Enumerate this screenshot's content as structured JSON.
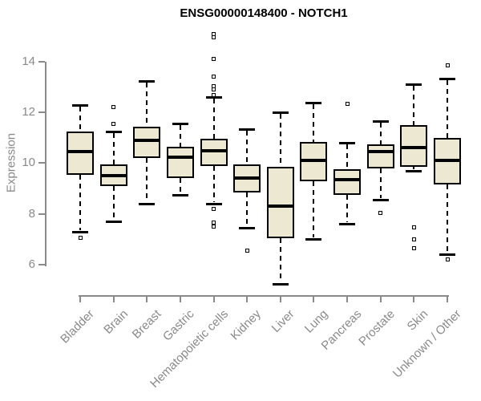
{
  "chart_data": {
    "type": "boxplot",
    "title": "ENSG00000148400 - NOTCH1",
    "ylabel": "Expression",
    "xlabel": "",
    "ylim": [
      6,
      14
    ],
    "yticks": [
      6,
      8,
      10,
      12,
      14
    ],
    "grid": false,
    "legend": "none",
    "categories": [
      "Bladder",
      "Brain",
      "Breast",
      "Gastric",
      "Hematopoietic cells",
      "Kidney",
      "Liver",
      "Lung",
      "Pancreas",
      "Prostate",
      "Skin",
      "Unknown / Other"
    ],
    "series": [
      {
        "name": "Bladder",
        "whisker_low": 7.3,
        "q1": 9.55,
        "median": 10.45,
        "q3": 11.25,
        "whisker_high": 12.3,
        "outliers": [
          7.05
        ]
      },
      {
        "name": "Brain",
        "whisker_low": 7.7,
        "q1": 9.1,
        "median": 9.5,
        "q3": 9.95,
        "whisker_high": 11.25,
        "outliers": [
          12.2,
          11.55
        ]
      },
      {
        "name": "Breast",
        "whisker_low": 8.4,
        "q1": 10.2,
        "median": 10.9,
        "q3": 11.45,
        "whisker_high": 13.25,
        "outliers": []
      },
      {
        "name": "Gastric",
        "whisker_low": 8.75,
        "q1": 9.4,
        "median": 10.25,
        "q3": 10.65,
        "whisker_high": 11.55,
        "outliers": []
      },
      {
        "name": "Hematopoietic cells",
        "whisker_low": 8.4,
        "q1": 9.9,
        "median": 10.5,
        "q3": 10.95,
        "whisker_high": 12.6,
        "outliers": [
          15.1,
          14.95,
          14.1,
          13.4,
          13.05,
          12.9,
          12.7,
          8.2,
          7.65,
          7.5
        ]
      },
      {
        "name": "Kidney",
        "whisker_low": 7.45,
        "q1": 8.85,
        "median": 9.4,
        "q3": 9.95,
        "whisker_high": 11.35,
        "outliers": [
          6.55
        ]
      },
      {
        "name": "Liver",
        "whisker_low": 5.25,
        "q1": 7.05,
        "median": 8.3,
        "q3": 9.85,
        "whisker_high": 12.0,
        "outliers": []
      },
      {
        "name": "Lung",
        "whisker_low": 7.0,
        "q1": 9.3,
        "median": 10.1,
        "q3": 10.85,
        "whisker_high": 12.4,
        "outliers": []
      },
      {
        "name": "Pancreas",
        "whisker_low": 7.6,
        "q1": 8.75,
        "median": 9.35,
        "q3": 9.75,
        "whisker_high": 10.8,
        "outliers": [
          12.35
        ]
      },
      {
        "name": "Prostate",
        "whisker_low": 8.55,
        "q1": 9.8,
        "median": 10.45,
        "q3": 10.75,
        "whisker_high": 11.65,
        "outliers": [
          8.05
        ]
      },
      {
        "name": "Skin",
        "whisker_low": 9.7,
        "q1": 9.85,
        "median": 10.6,
        "q3": 11.5,
        "whisker_high": 13.1,
        "outliers": [
          7.45,
          7.0,
          6.65
        ]
      },
      {
        "name": "Unknown / Other",
        "whisker_low": 6.4,
        "q1": 9.15,
        "median": 10.1,
        "q3": 11.0,
        "whisker_high": 13.35,
        "outliers": [
          13.85,
          6.2
        ]
      }
    ],
    "colors": {
      "box_fill": "#EDE8D1",
      "box_border": "#000000",
      "median": "#000000",
      "whisker": "#000000",
      "outlier": "#000000",
      "axis": "#8A8A8A",
      "tick_label": "#8A8A8A",
      "title": "#000000",
      "background": "#FFFFFF"
    }
  }
}
